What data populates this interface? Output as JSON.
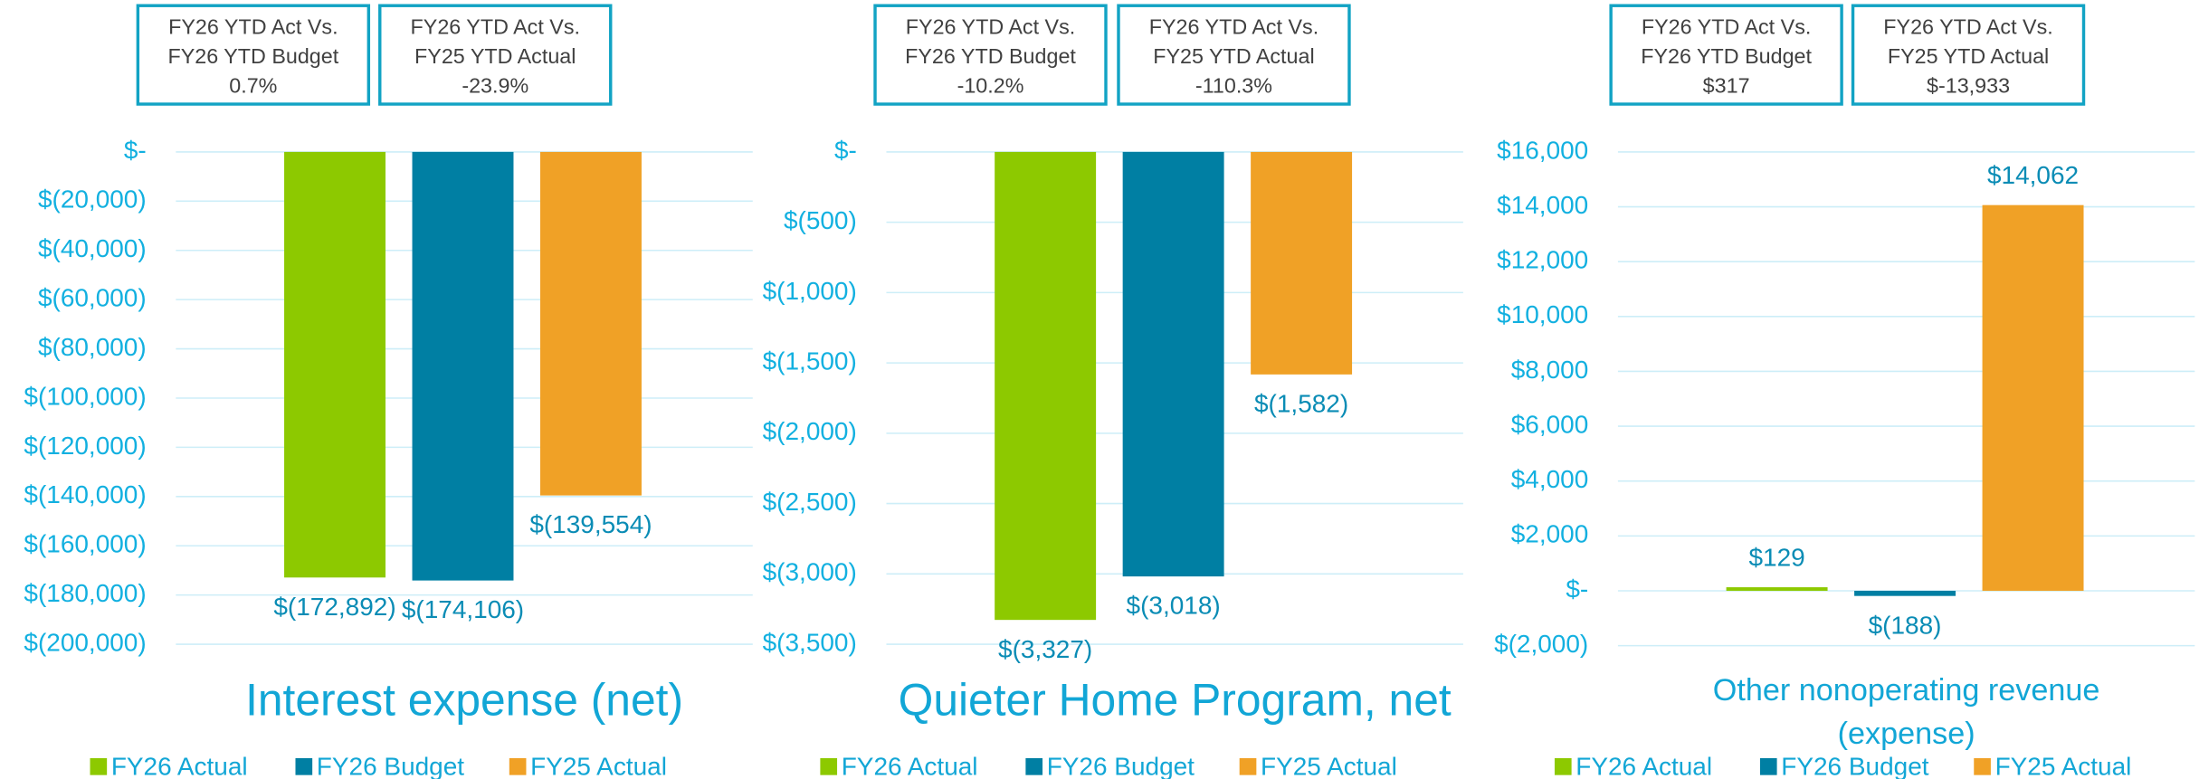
{
  "chart_data": [
    {
      "type": "bar",
      "title": "Interest expense (net)",
      "boxes": [
        {
          "lines": [
            "FY26 YTD Act Vs.",
            "FY26 YTD Budget"
          ],
          "value": "0.7%"
        },
        {
          "lines": [
            "FY26 YTD Act Vs.",
            "FY25 YTD Actual"
          ],
          "value": "-23.9%"
        }
      ],
      "categories": [
        null
      ],
      "series": [
        {
          "name": "FY26 Actual",
          "color": "#8dc900",
          "values": [
            -172892
          ],
          "value_labels": [
            "$(172,892)"
          ]
        },
        {
          "name": "FY26 Budget",
          "color": "#007fa3",
          "values": [
            -174106
          ],
          "value_labels": [
            "$(174,106)"
          ]
        },
        {
          "name": "FY25 Actual",
          "color": "#f0a126",
          "values": [
            -139554
          ],
          "value_labels": [
            "$(139,554)"
          ]
        }
      ],
      "ylim": [
        -200000,
        0
      ],
      "yticks": [
        {
          "value": 0,
          "label": "$-"
        },
        {
          "value": -20000,
          "label": "$(20,000)"
        },
        {
          "value": -40000,
          "label": "$(40,000)"
        },
        {
          "value": -60000,
          "label": "$(60,000)"
        },
        {
          "value": -80000,
          "label": "$(80,000)"
        },
        {
          "value": -100000,
          "label": "$(100,000)"
        },
        {
          "value": -120000,
          "label": "$(120,000)"
        },
        {
          "value": -140000,
          "label": "$(140,000)"
        },
        {
          "value": -160000,
          "label": "$(160,000)"
        },
        {
          "value": -180000,
          "label": "$(180,000)"
        },
        {
          "value": -200000,
          "label": "$(200,000)"
        }
      ],
      "grid": true,
      "legend": "bottom"
    },
    {
      "type": "bar",
      "title": "Quieter Home Program, net",
      "boxes": [
        {
          "lines": [
            "FY26 YTD Act Vs.",
            "FY26 YTD Budget"
          ],
          "value": "-10.2%"
        },
        {
          "lines": [
            "FY26 YTD Act Vs.",
            "FY25 YTD Actual"
          ],
          "value": "-110.3%"
        }
      ],
      "categories": [
        null
      ],
      "series": [
        {
          "name": "FY26 Actual",
          "color": "#8dc900",
          "values": [
            -3327
          ],
          "value_labels": [
            "$(3,327)"
          ]
        },
        {
          "name": "FY26 Budget",
          "color": "#007fa3",
          "values": [
            -3018
          ],
          "value_labels": [
            "$(3,018)"
          ]
        },
        {
          "name": "FY25 Actual",
          "color": "#f0a126",
          "values": [
            -1582
          ],
          "value_labels": [
            "$(1,582)"
          ]
        }
      ],
      "ylim": [
        -3500,
        0
      ],
      "yticks": [
        {
          "value": 0,
          "label": "$-"
        },
        {
          "value": -500,
          "label": "$(500)"
        },
        {
          "value": -1000,
          "label": "$(1,000)"
        },
        {
          "value": -1500,
          "label": "$(1,500)"
        },
        {
          "value": -2000,
          "label": "$(2,000)"
        },
        {
          "value": -2500,
          "label": "$(2,500)"
        },
        {
          "value": -3000,
          "label": "$(3,000)"
        },
        {
          "value": -3500,
          "label": "$(3,500)"
        }
      ],
      "grid": true,
      "legend": "bottom"
    },
    {
      "type": "bar",
      "title": "Other nonoperating revenue (expense)",
      "boxes": [
        {
          "lines": [
            "FY26 YTD Act Vs.",
            "FY26 YTD Budget"
          ],
          "value": "$317"
        },
        {
          "lines": [
            "FY26 YTD Act Vs.",
            "FY25 YTD Actual"
          ],
          "value": "$-13,933"
        }
      ],
      "categories": [
        null
      ],
      "series": [
        {
          "name": "FY26 Actual",
          "color": "#8dc900",
          "values": [
            129
          ],
          "value_labels": [
            "$129"
          ]
        },
        {
          "name": "FY26 Budget",
          "color": "#007fa3",
          "values": [
            -188
          ],
          "value_labels": [
            "$(188)"
          ]
        },
        {
          "name": "FY25 Actual",
          "color": "#f0a126",
          "values": [
            14062
          ],
          "value_labels": [
            "$14,062"
          ]
        }
      ],
      "ylim": [
        -2000,
        16000
      ],
      "yticks": [
        {
          "value": 16000,
          "label": "$16,000"
        },
        {
          "value": 14000,
          "label": "$14,000"
        },
        {
          "value": 12000,
          "label": "$12,000"
        },
        {
          "value": 10000,
          "label": "$10,000"
        },
        {
          "value": 8000,
          "label": "$8,000"
        },
        {
          "value": 6000,
          "label": "$6,000"
        },
        {
          "value": 4000,
          "label": "$4,000"
        },
        {
          "value": 2000,
          "label": "$2,000"
        },
        {
          "value": 0,
          "label": "$-"
        },
        {
          "value": -2000,
          "label": "$(2,000)"
        }
      ],
      "grid": true,
      "legend": "bottom"
    }
  ]
}
